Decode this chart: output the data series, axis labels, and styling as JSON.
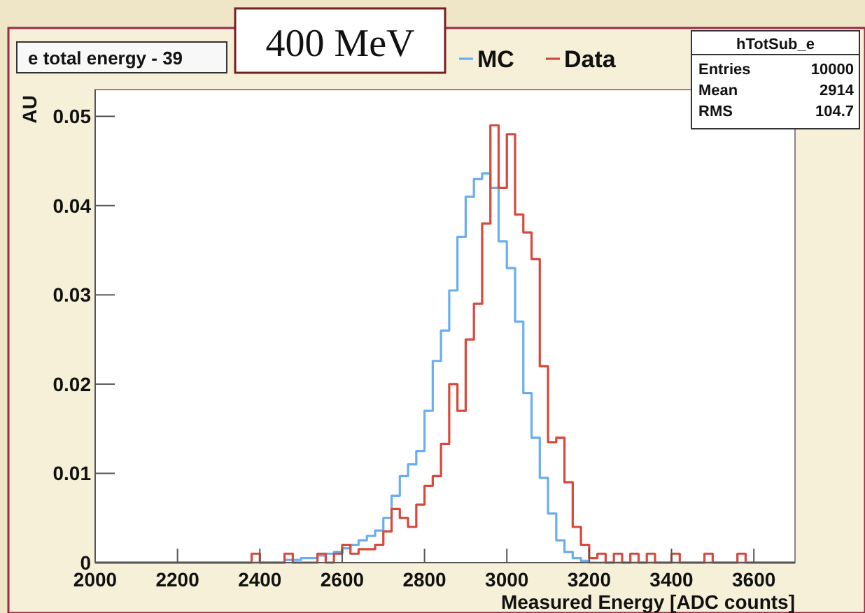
{
  "chart_data": {
    "type": "histogram",
    "title": "e total energy - 39",
    "xlabel": "Measured Energy [ADC counts]",
    "ylabel": "AU",
    "annotations": [
      "400 MeV",
      "hTotSub_e",
      "Entries",
      "10000",
      "Mean",
      "2914",
      "RMS",
      "104.7"
    ],
    "bins": [
      2000,
      2020,
      2040,
      2060,
      2080,
      2100,
      2120,
      2140,
      2160,
      2180,
      2200,
      2220,
      2240,
      2260,
      2280,
      2300,
      2320,
      2340,
      2360,
      2380,
      2400,
      2420,
      2440,
      2460,
      2480,
      2500,
      2520,
      2540,
      2560,
      2580,
      2600,
      2620,
      2640,
      2660,
      2680,
      2700,
      2720,
      2740,
      2760,
      2780,
      2800,
      2820,
      2840,
      2860,
      2880,
      2900,
      2920,
      2940,
      2960,
      2980,
      3000,
      3020,
      3040,
      3060,
      3080,
      3100,
      3120,
      3140,
      3160,
      3180,
      3200,
      3220,
      3240,
      3260,
      3280,
      3300,
      3320,
      3340,
      3360,
      3380,
      3400,
      3420,
      3440,
      3460,
      3480,
      3500,
      3520,
      3540,
      3560,
      3580,
      3600,
      3620,
      3640,
      3660,
      3680,
      3700
    ],
    "series": [
      {
        "name": "MC",
        "color": "#6aaef0",
        "values": [
          0,
          0,
          0,
          0,
          0,
          0,
          0,
          0,
          0,
          0,
          0,
          0,
          0,
          0,
          0,
          0,
          0,
          0,
          0,
          0,
          0,
          0,
          0,
          0.0003,
          0.0003,
          0.0005,
          0.0005,
          0.0008,
          0.001,
          0.0012,
          0.0016,
          0.002,
          0.0025,
          0.003,
          0.0036,
          0.005,
          0.0075,
          0.0097,
          0.011,
          0.0125,
          0.017,
          0.0226,
          0.026,
          0.0305,
          0.0365,
          0.041,
          0.043,
          0.0436,
          0.042,
          0.036,
          0.033,
          0.027,
          0.019,
          0.014,
          0.0095,
          0.0055,
          0.0025,
          0.0012,
          0.0005,
          0.0002,
          0,
          0,
          0,
          0,
          0,
          0,
          0,
          0,
          0,
          0,
          0,
          0,
          0,
          0,
          0,
          0,
          0,
          0,
          0,
          0,
          0,
          0,
          0,
          0,
          0
        ]
      },
      {
        "name": "Data",
        "color": "#d9483b",
        "values": [
          0,
          0,
          0,
          0,
          0,
          0,
          0,
          0,
          0,
          0,
          0,
          0,
          0,
          0,
          0,
          0,
          0,
          0,
          0,
          0.001,
          0,
          0,
          0,
          0.001,
          0,
          0,
          0,
          0.001,
          0,
          0.001,
          0.002,
          0.001,
          0.0015,
          0.0015,
          0.002,
          0.0035,
          0.006,
          0.005,
          0.004,
          0.0065,
          0.0086,
          0.0097,
          0.0133,
          0.02,
          0.017,
          0.025,
          0.029,
          0.038,
          0.049,
          0.042,
          0.048,
          0.039,
          0.037,
          0.034,
          0.022,
          0.0135,
          0.014,
          0.009,
          0.004,
          0.002,
          0.0005,
          0.001,
          0,
          0.001,
          0,
          0.001,
          0,
          0.001,
          0,
          0,
          0.001,
          0,
          0,
          0,
          0.001,
          0,
          0,
          0,
          0.001,
          0,
          0,
          0,
          0,
          0,
          0
        ]
      }
    ],
    "xlim": [
      2000,
      3700
    ],
    "xticks": [
      2000,
      2200,
      2400,
      2600,
      2800,
      3000,
      3200,
      3400,
      3600
    ],
    "ylim": [
      0,
      0.053
    ],
    "yticks": [
      0,
      0.01,
      0.02,
      0.03,
      0.04,
      0.05
    ],
    "legend": "top",
    "grid": false
  }
}
